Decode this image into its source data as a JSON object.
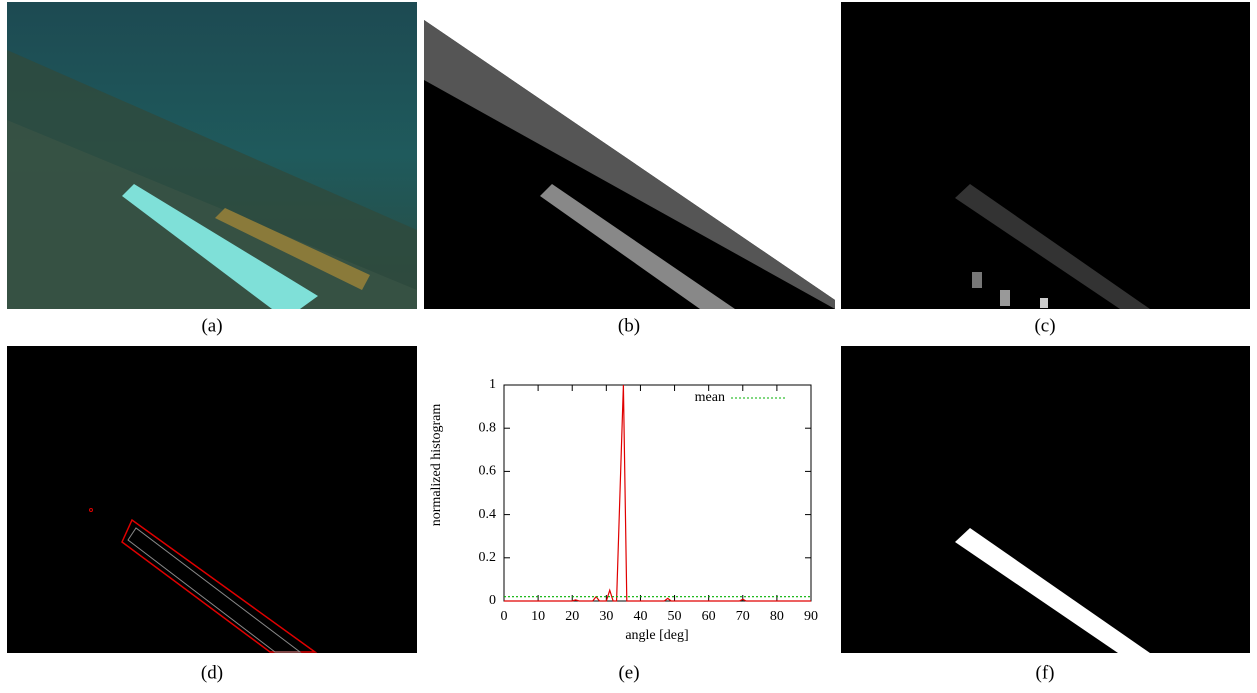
{
  "panels": [
    "(a)",
    "(b)",
    "(c)",
    "(d)",
    "(e)",
    "(f)"
  ],
  "chart_data": {
    "type": "line",
    "xlabel": "angle [deg]",
    "ylabel": "normalized histogram",
    "xlim": [
      0,
      90
    ],
    "ylim": [
      0,
      1
    ],
    "xticks": [
      0,
      10,
      20,
      30,
      40,
      50,
      60,
      70,
      80,
      90
    ],
    "yticks": [
      0,
      0.2,
      0.4,
      0.6,
      0.8,
      1
    ],
    "grid": false,
    "legend": "upper-right",
    "series": [
      {
        "color": "#e00000",
        "dashed": false,
        "x": [
          0,
          20,
          21,
          22,
          26,
          27,
          28,
          30,
          31,
          32,
          33,
          35,
          36,
          47,
          48,
          49,
          69,
          70,
          71,
          90
        ],
        "values": [
          0,
          0,
          0.005,
          0,
          0,
          0.02,
          0,
          0,
          0.05,
          0,
          0,
          1,
          0,
          0,
          0.012,
          0,
          0,
          0.008,
          0,
          0
        ]
      },
      {
        "name": "mean",
        "color": "#00b000",
        "dashed": true,
        "x": [
          0,
          90
        ],
        "values": [
          0.02,
          0.02
        ]
      }
    ]
  }
}
